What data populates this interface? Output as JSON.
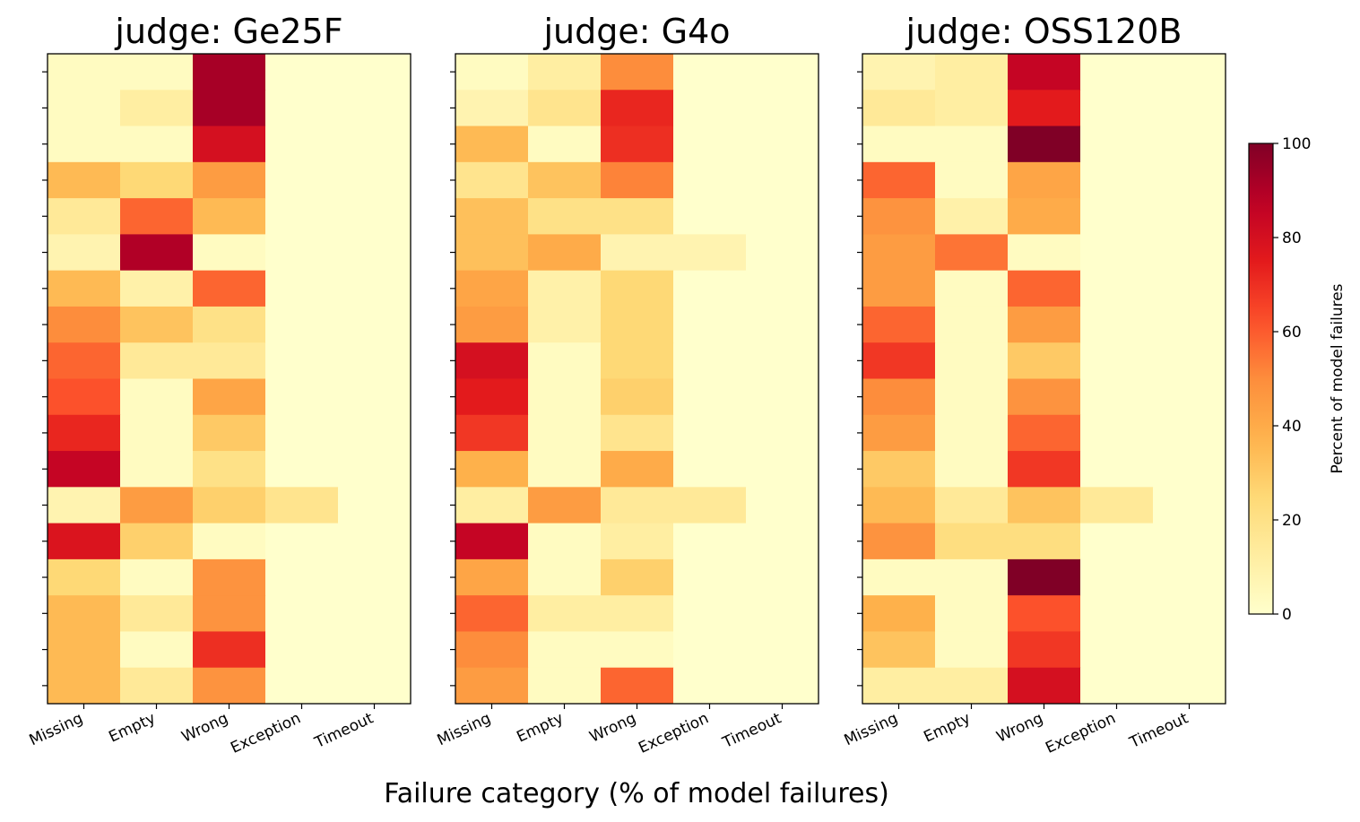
{
  "chart_data": [
    {
      "type": "heatmap",
      "title": "judge: Ge25F",
      "colormap": "YlOrRd",
      "columns": [
        "Missing",
        "Empty",
        "Wrong",
        "Exception",
        "Timeout"
      ],
      "rows": [
        null,
        null,
        null,
        null,
        null,
        null,
        null,
        null,
        null,
        null,
        null,
        null,
        null,
        null,
        null,
        null,
        null,
        null
      ],
      "values": [
        [
          3,
          3,
          92,
          0,
          0
        ],
        [
          3,
          12,
          92,
          0,
          0
        ],
        [
          3,
          3,
          80,
          0,
          0
        ],
        [
          35,
          25,
          45,
          0,
          0
        ],
        [
          15,
          58,
          35,
          0,
          0
        ],
        [
          8,
          90,
          3,
          0,
          0
        ],
        [
          35,
          10,
          58,
          0,
          0
        ],
        [
          50,
          32,
          20,
          0,
          0
        ],
        [
          58,
          15,
          15,
          0,
          0
        ],
        [
          62,
          3,
          42,
          0,
          0
        ],
        [
          72,
          3,
          30,
          0,
          0
        ],
        [
          85,
          3,
          20,
          0,
          0
        ],
        [
          8,
          45,
          28,
          18,
          0
        ],
        [
          78,
          28,
          3,
          0,
          0
        ],
        [
          25,
          3,
          48,
          0,
          0
        ],
        [
          35,
          15,
          48,
          0,
          0
        ],
        [
          35,
          3,
          70,
          0,
          0
        ],
        [
          35,
          15,
          48,
          0,
          0
        ]
      ]
    },
    {
      "type": "heatmap",
      "title": "judge: G4o",
      "colormap": "YlOrRd",
      "columns": [
        "Missing",
        "Empty",
        "Wrong",
        "Exception",
        "Timeout"
      ],
      "rows": [
        null,
        null,
        null,
        null,
        null,
        null,
        null,
        null,
        null,
        null,
        null,
        null,
        null,
        null,
        null,
        null,
        null,
        null
      ],
      "values": [
        [
          3,
          12,
          50,
          0,
          0
        ],
        [
          8,
          18,
          72,
          0,
          0
        ],
        [
          35,
          3,
          70,
          0,
          0
        ],
        [
          18,
          32,
          52,
          0,
          0
        ],
        [
          33,
          20,
          20,
          0,
          0
        ],
        [
          33,
          40,
          8,
          8,
          0
        ],
        [
          42,
          10,
          25,
          0,
          0
        ],
        [
          45,
          10,
          25,
          0,
          0
        ],
        [
          80,
          3,
          25,
          0,
          0
        ],
        [
          75,
          3,
          28,
          0,
          0
        ],
        [
          68,
          3,
          18,
          0,
          0
        ],
        [
          38,
          3,
          40,
          0,
          0
        ],
        [
          12,
          45,
          15,
          15,
          0
        ],
        [
          85,
          3,
          12,
          0,
          0
        ],
        [
          42,
          3,
          28,
          0,
          0
        ],
        [
          58,
          12,
          12,
          0,
          0
        ],
        [
          50,
          3,
          3,
          0,
          0
        ],
        [
          45,
          3,
          58,
          0,
          0
        ]
      ]
    },
    {
      "type": "heatmap",
      "title": "judge: OSS120B",
      "colormap": "YlOrRd",
      "columns": [
        "Missing",
        "Empty",
        "Wrong",
        "Exception",
        "Timeout"
      ],
      "rows": [
        null,
        null,
        null,
        null,
        null,
        null,
        null,
        null,
        null,
        null,
        null,
        null,
        null,
        null,
        null,
        null,
        null,
        null
      ],
      "values": [
        [
          8,
          12,
          85,
          0,
          0
        ],
        [
          15,
          12,
          75,
          0,
          0
        ],
        [
          3,
          3,
          100,
          0,
          0
        ],
        [
          58,
          3,
          42,
          0,
          0
        ],
        [
          48,
          10,
          40,
          0,
          0
        ],
        [
          45,
          55,
          3,
          0,
          0
        ],
        [
          45,
          3,
          58,
          0,
          0
        ],
        [
          58,
          3,
          45,
          0,
          0
        ],
        [
          68,
          3,
          30,
          0,
          0
        ],
        [
          50,
          3,
          48,
          0,
          0
        ],
        [
          45,
          3,
          58,
          0,
          0
        ],
        [
          30,
          3,
          68,
          0,
          0
        ],
        [
          35,
          15,
          32,
          15,
          0
        ],
        [
          48,
          22,
          22,
          0,
          0
        ],
        [
          3,
          3,
          100,
          0,
          0
        ],
        [
          38,
          3,
          62,
          0,
          0
        ],
        [
          32,
          3,
          68,
          0,
          0
        ],
        [
          12,
          12,
          80,
          0,
          0
        ]
      ]
    }
  ],
  "shared": {
    "x_label": "Failure category (% of model failures)",
    "colorbar": {
      "label": "Percent of model failures",
      "colormap": "YlOrRd",
      "lim": [
        0,
        100
      ],
      "ticks": [
        0,
        20,
        40,
        60,
        80,
        100
      ]
    }
  }
}
